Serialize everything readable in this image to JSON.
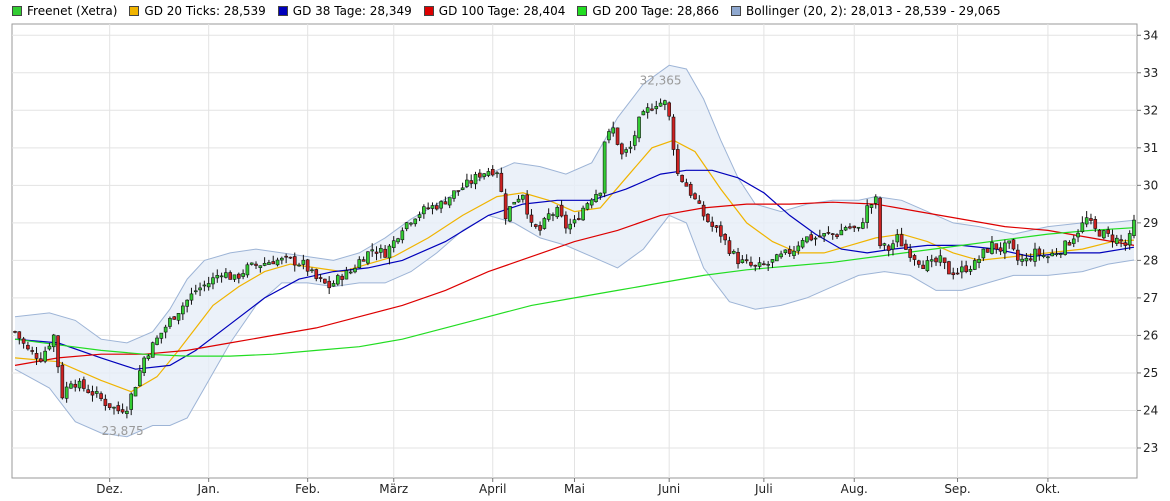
{
  "legend": [
    {
      "label": "Freenet (Xetra)",
      "color": "#33cc33"
    },
    {
      "label": "GD 20 Ticks: 28,539",
      "color": "#f0b400"
    },
    {
      "label": "GD 38 Tage: 28,349",
      "color": "#0000bb"
    },
    {
      "label": "GD 100 Tage: 28,404",
      "color": "#dd0000"
    },
    {
      "label": "GD 200 Tage: 28,866",
      "color": "#22dd22"
    },
    {
      "label": "Bollinger (20, 2): 28,013 - 28,539 - 29,065",
      "color": "#8fa8cf"
    }
  ],
  "chart_data": {
    "type": "line",
    "title": "",
    "xlabel": "",
    "ylabel": "",
    "ylim": [
      22.2,
      34.3
    ],
    "yticks": [
      23,
      24,
      25,
      26,
      27,
      28,
      29,
      30,
      31,
      32,
      33,
      34
    ],
    "month_labels": [
      {
        "label": "Dez.",
        "day": 22
      },
      {
        "label": "Jan.",
        "day": 45
      },
      {
        "label": "Feb.",
        "day": 68
      },
      {
        "label": "März",
        "day": 88
      },
      {
        "label": "April",
        "day": 111
      },
      {
        "label": "Mai",
        "day": 130
      },
      {
        "label": "Juni",
        "day": 152
      },
      {
        "label": "Juli",
        "day": 174
      },
      {
        "label": "Aug.",
        "day": 195
      },
      {
        "label": "Sep.",
        "day": 219
      },
      {
        "label": "Okt.",
        "day": 240
      }
    ],
    "x_days_total": 261,
    "annotations": [
      {
        "label": "32,365",
        "day": 150,
        "value": 32.365,
        "position": "above"
      },
      {
        "label": "23,875",
        "day": 25,
        "value": 23.875,
        "position": "below"
      }
    ],
    "price_anchors": [
      [
        0,
        26.1
      ],
      [
        3,
        25.6
      ],
      [
        6,
        25.4
      ],
      [
        9,
        26.0
      ],
      [
        11,
        24.4
      ],
      [
        13,
        24.8
      ],
      [
        16,
        24.6
      ],
      [
        19,
        24.4
      ],
      [
        21,
        24.2
      ],
      [
        24,
        24.0
      ],
      [
        26,
        24.1
      ],
      [
        28,
        24.7
      ],
      [
        30,
        25.4
      ],
      [
        33,
        25.9
      ],
      [
        36,
        26.4
      ],
      [
        39,
        26.8
      ],
      [
        42,
        27.2
      ],
      [
        45,
        27.4
      ],
      [
        48,
        27.7
      ],
      [
        51,
        27.5
      ],
      [
        54,
        27.8
      ],
      [
        57,
        27.9
      ],
      [
        60,
        28.0
      ],
      [
        64,
        28.0
      ],
      [
        67,
        27.9
      ],
      [
        70,
        27.5
      ],
      [
        73,
        27.3
      ],
      [
        76,
        27.6
      ],
      [
        78,
        27.7
      ],
      [
        80,
        28.0
      ],
      [
        83,
        28.3
      ],
      [
        86,
        28.2
      ],
      [
        88,
        28.5
      ],
      [
        90,
        28.9
      ],
      [
        93,
        29.2
      ],
      [
        96,
        29.4
      ],
      [
        99,
        29.5
      ],
      [
        102,
        29.8
      ],
      [
        106,
        30.1
      ],
      [
        108,
        30.3
      ],
      [
        110,
        30.4
      ],
      [
        112,
        30.4
      ],
      [
        114,
        29.2
      ],
      [
        116,
        29.6
      ],
      [
        118,
        29.8
      ],
      [
        120,
        28.9
      ],
      [
        122,
        28.8
      ],
      [
        124,
        29.2
      ],
      [
        126,
        29.3
      ],
      [
        128,
        28.9
      ],
      [
        130,
        29.0
      ],
      [
        132,
        29.4
      ],
      [
        134,
        29.7
      ],
      [
        136,
        29.9
      ],
      [
        137,
        31.2
      ],
      [
        139,
        31.5
      ],
      [
        141,
        30.8
      ],
      [
        143,
        31.0
      ],
      [
        145,
        31.7
      ],
      [
        147,
        32.0
      ],
      [
        149,
        32.2
      ],
      [
        151,
        32.2
      ],
      [
        152,
        31.8
      ],
      [
        154,
        30.3
      ],
      [
        156,
        30.0
      ],
      [
        158,
        29.6
      ],
      [
        160,
        29.2
      ],
      [
        162,
        28.9
      ],
      [
        164,
        28.7
      ],
      [
        166,
        28.3
      ],
      [
        168,
        28.0
      ],
      [
        170,
        27.9
      ],
      [
        172,
        27.8
      ],
      [
        175,
        27.9
      ],
      [
        178,
        28.1
      ],
      [
        181,
        28.3
      ],
      [
        183,
        28.6
      ],
      [
        186,
        28.6
      ],
      [
        189,
        28.7
      ],
      [
        191,
        28.7
      ],
      [
        193,
        28.9
      ],
      [
        196,
        28.8
      ],
      [
        198,
        29.4
      ],
      [
        200,
        29.6
      ],
      [
        201,
        28.4
      ],
      [
        203,
        28.3
      ],
      [
        205,
        28.6
      ],
      [
        207,
        28.3
      ],
      [
        209,
        28.1
      ],
      [
        211,
        27.9
      ],
      [
        213,
        27.9
      ],
      [
        215,
        28.0
      ],
      [
        217,
        27.7
      ],
      [
        219,
        27.7
      ],
      [
        221,
        27.8
      ],
      [
        223,
        27.9
      ],
      [
        225,
        28.2
      ],
      [
        227,
        28.4
      ],
      [
        229,
        28.3
      ],
      [
        231,
        28.4
      ],
      [
        233,
        28.0
      ],
      [
        235,
        28.0
      ],
      [
        237,
        28.2
      ],
      [
        240,
        28.1
      ],
      [
        243,
        28.3
      ],
      [
        245,
        28.5
      ],
      [
        247,
        28.8
      ],
      [
        249,
        29.1
      ],
      [
        251,
        28.8
      ],
      [
        253,
        28.7
      ],
      [
        255,
        28.6
      ],
      [
        257,
        28.5
      ],
      [
        258,
        28.4
      ],
      [
        259,
        28.6
      ],
      [
        260,
        29.0
      ]
    ],
    "series": [
      {
        "name": "GD 20 Ticks: 28,539",
        "color": "#f0b400",
        "points": [
          [
            0,
            25.4
          ],
          [
            10,
            25.3
          ],
          [
            20,
            24.8
          ],
          [
            27,
            24.5
          ],
          [
            33,
            24.9
          ],
          [
            38,
            25.6
          ],
          [
            42,
            26.2
          ],
          [
            46,
            26.8
          ],
          [
            52,
            27.3
          ],
          [
            58,
            27.7
          ],
          [
            64,
            27.9
          ],
          [
            70,
            27.8
          ],
          [
            76,
            27.7
          ],
          [
            82,
            27.9
          ],
          [
            88,
            28.1
          ],
          [
            96,
            28.6
          ],
          [
            104,
            29.2
          ],
          [
            112,
            29.7
          ],
          [
            118,
            29.8
          ],
          [
            124,
            29.6
          ],
          [
            130,
            29.3
          ],
          [
            136,
            29.4
          ],
          [
            142,
            30.2
          ],
          [
            148,
            31.0
          ],
          [
            153,
            31.2
          ],
          [
            158,
            30.9
          ],
          [
            164,
            29.9
          ],
          [
            170,
            29.0
          ],
          [
            176,
            28.5
          ],
          [
            182,
            28.2
          ],
          [
            188,
            28.2
          ],
          [
            194,
            28.4
          ],
          [
            200,
            28.6
          ],
          [
            206,
            28.7
          ],
          [
            212,
            28.5
          ],
          [
            218,
            28.2
          ],
          [
            224,
            28.0
          ],
          [
            232,
            28.1
          ],
          [
            240,
            28.2
          ],
          [
            248,
            28.3
          ],
          [
            255,
            28.5
          ],
          [
            260,
            28.54
          ]
        ]
      },
      {
        "name": "GD 38 Tage: 28,349",
        "color": "#0000bb",
        "points": [
          [
            0,
            25.9
          ],
          [
            10,
            25.8
          ],
          [
            20,
            25.4
          ],
          [
            28,
            25.1
          ],
          [
            36,
            25.2
          ],
          [
            42,
            25.6
          ],
          [
            50,
            26.3
          ],
          [
            58,
            27.0
          ],
          [
            66,
            27.5
          ],
          [
            74,
            27.7
          ],
          [
            82,
            27.8
          ],
          [
            90,
            28.0
          ],
          [
            100,
            28.5
          ],
          [
            110,
            29.2
          ],
          [
            118,
            29.5
          ],
          [
            126,
            29.6
          ],
          [
            134,
            29.6
          ],
          [
            142,
            29.9
          ],
          [
            150,
            30.3
          ],
          [
            156,
            30.4
          ],
          [
            162,
            30.4
          ],
          [
            168,
            30.2
          ],
          [
            174,
            29.8
          ],
          [
            180,
            29.2
          ],
          [
            186,
            28.7
          ],
          [
            192,
            28.3
          ],
          [
            198,
            28.2
          ],
          [
            204,
            28.3
          ],
          [
            212,
            28.4
          ],
          [
            220,
            28.4
          ],
          [
            228,
            28.3
          ],
          [
            236,
            28.1
          ],
          [
            244,
            28.2
          ],
          [
            252,
            28.2
          ],
          [
            260,
            28.35
          ]
        ]
      },
      {
        "name": "GD 100 Tage: 28,404",
        "color": "#dd0000",
        "points": [
          [
            0,
            25.2
          ],
          [
            10,
            25.4
          ],
          [
            20,
            25.5
          ],
          [
            30,
            25.5
          ],
          [
            40,
            25.6
          ],
          [
            50,
            25.8
          ],
          [
            60,
            26.0
          ],
          [
            70,
            26.2
          ],
          [
            80,
            26.5
          ],
          [
            90,
            26.8
          ],
          [
            100,
            27.2
          ],
          [
            110,
            27.7
          ],
          [
            120,
            28.1
          ],
          [
            130,
            28.5
          ],
          [
            140,
            28.8
          ],
          [
            150,
            29.2
          ],
          [
            160,
            29.4
          ],
          [
            170,
            29.5
          ],
          [
            180,
            29.5
          ],
          [
            190,
            29.55
          ],
          [
            200,
            29.5
          ],
          [
            210,
            29.3
          ],
          [
            220,
            29.1
          ],
          [
            230,
            28.9
          ],
          [
            240,
            28.8
          ],
          [
            250,
            28.6
          ],
          [
            260,
            28.4
          ]
        ]
      },
      {
        "name": "GD 200 Tage: 28,866",
        "color": "#22dd22",
        "points": [
          [
            0,
            25.9
          ],
          [
            10,
            25.75
          ],
          [
            20,
            25.6
          ],
          [
            30,
            25.5
          ],
          [
            40,
            25.45
          ],
          [
            50,
            25.45
          ],
          [
            60,
            25.5
          ],
          [
            70,
            25.6
          ],
          [
            80,
            25.7
          ],
          [
            90,
            25.9
          ],
          [
            100,
            26.2
          ],
          [
            110,
            26.5
          ],
          [
            120,
            26.8
          ],
          [
            130,
            27.0
          ],
          [
            140,
            27.2
          ],
          [
            150,
            27.4
          ],
          [
            160,
            27.6
          ],
          [
            170,
            27.75
          ],
          [
            180,
            27.85
          ],
          [
            190,
            27.95
          ],
          [
            200,
            28.1
          ],
          [
            210,
            28.25
          ],
          [
            220,
            28.4
          ],
          [
            230,
            28.55
          ],
          [
            240,
            28.7
          ],
          [
            250,
            28.8
          ],
          [
            260,
            28.87
          ]
        ]
      }
    ],
    "bollinger": {
      "name": "Bollinger (20, 2): 28,013 - 28,539 - 29,065",
      "upper": [
        [
          0,
          26.5
        ],
        [
          8,
          26.6
        ],
        [
          14,
          26.4
        ],
        [
          20,
          25.9
        ],
        [
          26,
          25.8
        ],
        [
          32,
          26.1
        ],
        [
          36,
          26.7
        ],
        [
          40,
          27.5
        ],
        [
          44,
          28.0
        ],
        [
          50,
          28.2
        ],
        [
          56,
          28.3
        ],
        [
          62,
          28.2
        ],
        [
          68,
          28.1
        ],
        [
          74,
          28.0
        ],
        [
          80,
          28.2
        ],
        [
          86,
          28.6
        ],
        [
          92,
          29.1
        ],
        [
          98,
          29.5
        ],
        [
          104,
          29.9
        ],
        [
          110,
          30.3
        ],
        [
          116,
          30.6
        ],
        [
          122,
          30.5
        ],
        [
          128,
          30.3
        ],
        [
          134,
          30.6
        ],
        [
          140,
          31.8
        ],
        [
          146,
          32.7
        ],
        [
          152,
          33.2
        ],
        [
          156,
          33.1
        ],
        [
          160,
          32.3
        ],
        [
          164,
          31.2
        ],
        [
          168,
          30.2
        ],
        [
          172,
          29.5
        ],
        [
          178,
          29.3
        ],
        [
          184,
          29.5
        ],
        [
          190,
          29.6
        ],
        [
          196,
          29.6
        ],
        [
          200,
          29.7
        ],
        [
          206,
          29.6
        ],
        [
          212,
          29.3
        ],
        [
          218,
          29.0
        ],
        [
          224,
          28.9
        ],
        [
          232,
          28.7
        ],
        [
          240,
          28.9
        ],
        [
          248,
          29.0
        ],
        [
          254,
          29.0
        ],
        [
          260,
          29.07
        ]
      ],
      "lower": [
        [
          0,
          25.1
        ],
        [
          8,
          24.6
        ],
        [
          14,
          23.7
        ],
        [
          20,
          23.4
        ],
        [
          26,
          23.3
        ],
        [
          32,
          23.6
        ],
        [
          36,
          23.6
        ],
        [
          40,
          23.8
        ],
        [
          44,
          24.6
        ],
        [
          50,
          25.8
        ],
        [
          56,
          26.8
        ],
        [
          62,
          27.4
        ],
        [
          68,
          27.4
        ],
        [
          74,
          27.3
        ],
        [
          80,
          27.4
        ],
        [
          86,
          27.4
        ],
        [
          92,
          27.7
        ],
        [
          98,
          28.2
        ],
        [
          104,
          28.8
        ],
        [
          110,
          29.2
        ],
        [
          116,
          29.0
        ],
        [
          122,
          28.6
        ],
        [
          128,
          28.4
        ],
        [
          134,
          28.1
        ],
        [
          140,
          27.8
        ],
        [
          146,
          28.3
        ],
        [
          152,
          29.2
        ],
        [
          156,
          29.0
        ],
        [
          160,
          27.8
        ],
        [
          166,
          26.9
        ],
        [
          172,
          26.7
        ],
        [
          178,
          26.8
        ],
        [
          184,
          27.0
        ],
        [
          190,
          27.3
        ],
        [
          196,
          27.6
        ],
        [
          202,
          27.7
        ],
        [
          208,
          27.6
        ],
        [
          214,
          27.2
        ],
        [
          220,
          27.2
        ],
        [
          226,
          27.4
        ],
        [
          232,
          27.6
        ],
        [
          240,
          27.6
        ],
        [
          248,
          27.7
        ],
        [
          254,
          27.9
        ],
        [
          260,
          28.01
        ]
      ]
    }
  }
}
